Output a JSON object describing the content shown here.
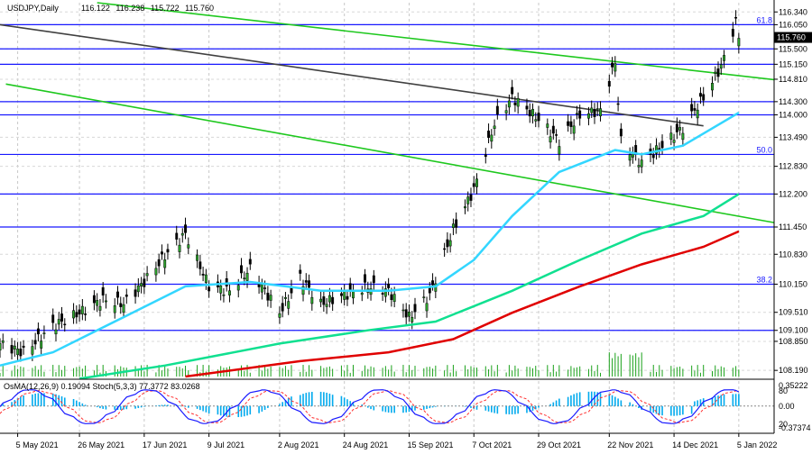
{
  "chart_data": {
    "type": "line",
    "title": "USDJPY,Daily",
    "ohlc": {
      "open": "116.122",
      "high": "116.238",
      "low": "115.722",
      "close": "115.760"
    },
    "ylim": [
      108.05,
      116.55
    ],
    "xlabels": [
      "5 May 2021",
      "26 May 2021",
      "17 Jun 2021",
      "9 Jul 2021",
      "2 Aug 2021",
      "24 Aug 2021",
      "15 Sep 2021",
      "7 Oct 2021",
      "29 Oct 2021",
      "22 Nov 2021",
      "14 Dec 2021",
      "5 Jan 2022"
    ],
    "price_ticks": [
      "116.340",
      "116.050",
      "115.500",
      "115.150",
      "114.810",
      "114.300",
      "114.000",
      "113.490",
      "112.830",
      "112.200",
      "111.450",
      "110.830",
      "110.150",
      "109.510",
      "109.100",
      "108.850",
      "108.190"
    ],
    "last_price": "115.760",
    "horizontal_levels": [
      {
        "price": 116.05,
        "label": "61.8"
      },
      {
        "price": 115.5
      },
      {
        "price": 115.15
      },
      {
        "price": 114.3
      },
      {
        "price": 114.0
      },
      {
        "price": 113.1,
        "label": "50.0"
      },
      {
        "price": 112.2
      },
      {
        "price": 111.45
      },
      {
        "price": 110.15,
        "label": "38.2"
      },
      {
        "price": 109.1
      }
    ],
    "price_series": [
      {
        "date": "2021-04-29",
        "close": 108.8
      },
      {
        "date": "2021-05-07",
        "close": 108.6
      },
      {
        "date": "2021-05-17",
        "close": 109.2
      },
      {
        "date": "2021-05-26",
        "close": 109.5
      },
      {
        "date": "2021-06-03",
        "close": 109.8
      },
      {
        "date": "2021-06-10",
        "close": 109.7
      },
      {
        "date": "2021-06-17",
        "close": 110.2
      },
      {
        "date": "2021-06-24",
        "close": 110.8
      },
      {
        "date": "2021-07-01",
        "close": 111.3
      },
      {
        "date": "2021-07-09",
        "close": 110.1
      },
      {
        "date": "2021-07-16",
        "close": 110.0
      },
      {
        "date": "2021-07-23",
        "close": 110.5
      },
      {
        "date": "2021-08-02",
        "close": 109.5
      },
      {
        "date": "2021-08-09",
        "close": 110.3
      },
      {
        "date": "2021-08-16",
        "close": 109.7
      },
      {
        "date": "2021-08-24",
        "close": 109.9
      },
      {
        "date": "2021-09-01",
        "close": 110.1
      },
      {
        "date": "2021-09-08",
        "close": 110.0
      },
      {
        "date": "2021-09-15",
        "close": 109.4
      },
      {
        "date": "2021-09-22",
        "close": 109.9
      },
      {
        "date": "2021-09-30",
        "close": 111.4
      },
      {
        "date": "2021-10-07",
        "close": 112.3
      },
      {
        "date": "2021-10-14",
        "close": 113.8
      },
      {
        "date": "2021-10-20",
        "close": 114.4
      },
      {
        "date": "2021-10-29",
        "close": 113.9
      },
      {
        "date": "2021-11-05",
        "close": 113.4
      },
      {
        "date": "2021-11-12",
        "close": 114.0
      },
      {
        "date": "2021-11-19",
        "close": 114.1
      },
      {
        "date": "2021-11-24",
        "close": 115.2
      },
      {
        "date": "2021-11-26",
        "close": 113.4
      },
      {
        "date": "2021-12-03",
        "close": 112.9
      },
      {
        "date": "2021-12-10",
        "close": 113.3
      },
      {
        "date": "2021-12-17",
        "close": 113.7
      },
      {
        "date": "2021-12-24",
        "close": 114.4
      },
      {
        "date": "2021-12-30",
        "close": 115.1
      },
      {
        "date": "2022-01-04",
        "close": 116.1
      },
      {
        "date": "2022-01-05",
        "close": 115.76
      }
    ],
    "moving_averages": [
      {
        "color": "#33d6ff",
        "points": [
          {
            "date": "2021-04-29",
            "value": 108.3
          },
          {
            "date": "2021-05-17",
            "value": 108.6
          },
          {
            "date": "2021-06-10",
            "value": 109.4
          },
          {
            "date": "2021-07-01",
            "value": 110.1
          },
          {
            "date": "2021-07-23",
            "value": 110.2
          },
          {
            "date": "2021-08-16",
            "value": 110.0
          },
          {
            "date": "2021-09-08",
            "value": 110.0
          },
          {
            "date": "2021-09-24",
            "value": 110.1
          },
          {
            "date": "2021-10-07",
            "value": 110.7
          },
          {
            "date": "2021-10-20",
            "value": 111.7
          },
          {
            "date": "2021-11-05",
            "value": 112.7
          },
          {
            "date": "2021-11-24",
            "value": 113.2
          },
          {
            "date": "2021-12-03",
            "value": 113.1
          },
          {
            "date": "2021-12-17",
            "value": 113.3
          },
          {
            "date": "2022-01-05",
            "value": 114.05
          }
        ]
      },
      {
        "color": "#10e090",
        "points": [
          {
            "date": "2021-05-26",
            "value": 108.0
          },
          {
            "date": "2021-06-24",
            "value": 108.3
          },
          {
            "date": "2021-08-02",
            "value": 108.8
          },
          {
            "date": "2021-09-01",
            "value": 109.1
          },
          {
            "date": "2021-09-24",
            "value": 109.3
          },
          {
            "date": "2021-10-20",
            "value": 110.0
          },
          {
            "date": "2021-11-12",
            "value": 110.7
          },
          {
            "date": "2021-12-03",
            "value": 111.3
          },
          {
            "date": "2021-12-24",
            "value": 111.7
          },
          {
            "date": "2022-01-05",
            "value": 112.2
          }
        ]
      },
      {
        "color": "#e00000",
        "points": [
          {
            "date": "2021-07-01",
            "value": 108.05
          },
          {
            "date": "2021-08-09",
            "value": 108.4
          },
          {
            "date": "2021-09-08",
            "value": 108.6
          },
          {
            "date": "2021-09-30",
            "value": 108.9
          },
          {
            "date": "2021-10-20",
            "value": 109.5
          },
          {
            "date": "2021-11-12",
            "value": 110.1
          },
          {
            "date": "2021-12-03",
            "value": 110.6
          },
          {
            "date": "2021-12-24",
            "value": 111.0
          },
          {
            "date": "2022-01-05",
            "value": 111.35
          }
        ]
      }
    ],
    "channel_lines": [
      {
        "color": "#1ec81e",
        "from": {
          "date": "2021-06-01",
          "price": 116.55
        },
        "to": {
          "date": "2022-01-17",
          "price": 114.8
        }
      },
      {
        "color": "#1ec81e",
        "from": {
          "date": "2021-05-01",
          "price": 114.7
        },
        "to": {
          "date": "2022-01-17",
          "price": 111.55
        }
      },
      {
        "color": "#404040",
        "from": {
          "date": "2021-04-29",
          "price": 116.05
        },
        "to": {
          "date": "2021-12-24",
          "price": 113.75
        }
      }
    ],
    "oscillator": {
      "label": "OsMA(12,26,9) 0.19094 Stoch(5,3,3) 77.3772 83.0268",
      "ticks": [
        "0.35222",
        "80",
        "0.00",
        "20",
        "-0.37374"
      ],
      "colors": {
        "histogram": "#00aaee",
        "stoch_main": "#1a1aff",
        "stoch_signal": "#ff3030"
      }
    },
    "colors": {
      "up_candle": "#2da52d",
      "down_candle": "#000000",
      "level": "#1818ff",
      "volume": "#1aa11a",
      "last_price_box": "#000000"
    }
  }
}
